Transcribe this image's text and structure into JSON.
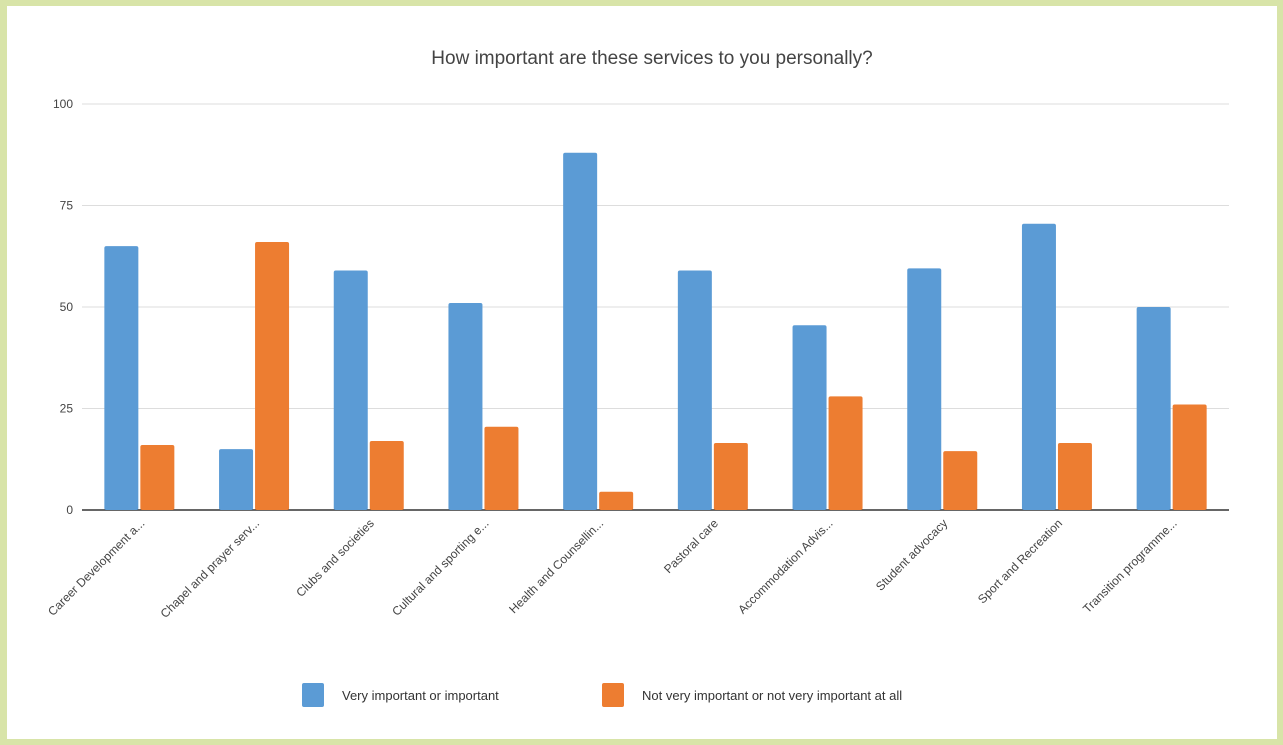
{
  "chart_data": {
    "type": "bar",
    "title": "How important are these services to you personally?",
    "xlabel": "",
    "ylabel": "",
    "ylim": [
      0,
      100
    ],
    "yticks": [
      0,
      25,
      50,
      75,
      100
    ],
    "grid": true,
    "legend_position": "bottom",
    "categories": [
      "Career Development a...",
      "Chapel and prayer serv...",
      "Clubs and societies",
      "Cultural and sporting e...",
      "Health and Counsellin...",
      "Pastoral care",
      "Accommodation Advis...",
      "Student advocacy",
      "Sport and Recreation",
      "Transition programme..."
    ],
    "series": [
      {
        "name": "Very important or important",
        "color": "#5b9bd5",
        "values": [
          65,
          15,
          59,
          51,
          88,
          59,
          45.5,
          59.5,
          70.5,
          50
        ]
      },
      {
        "name": "Not very important or not very important at all",
        "color": "#ed7d31",
        "values": [
          16,
          66,
          17,
          20.5,
          4.5,
          16.5,
          28,
          14.5,
          16.5,
          26
        ]
      }
    ]
  }
}
